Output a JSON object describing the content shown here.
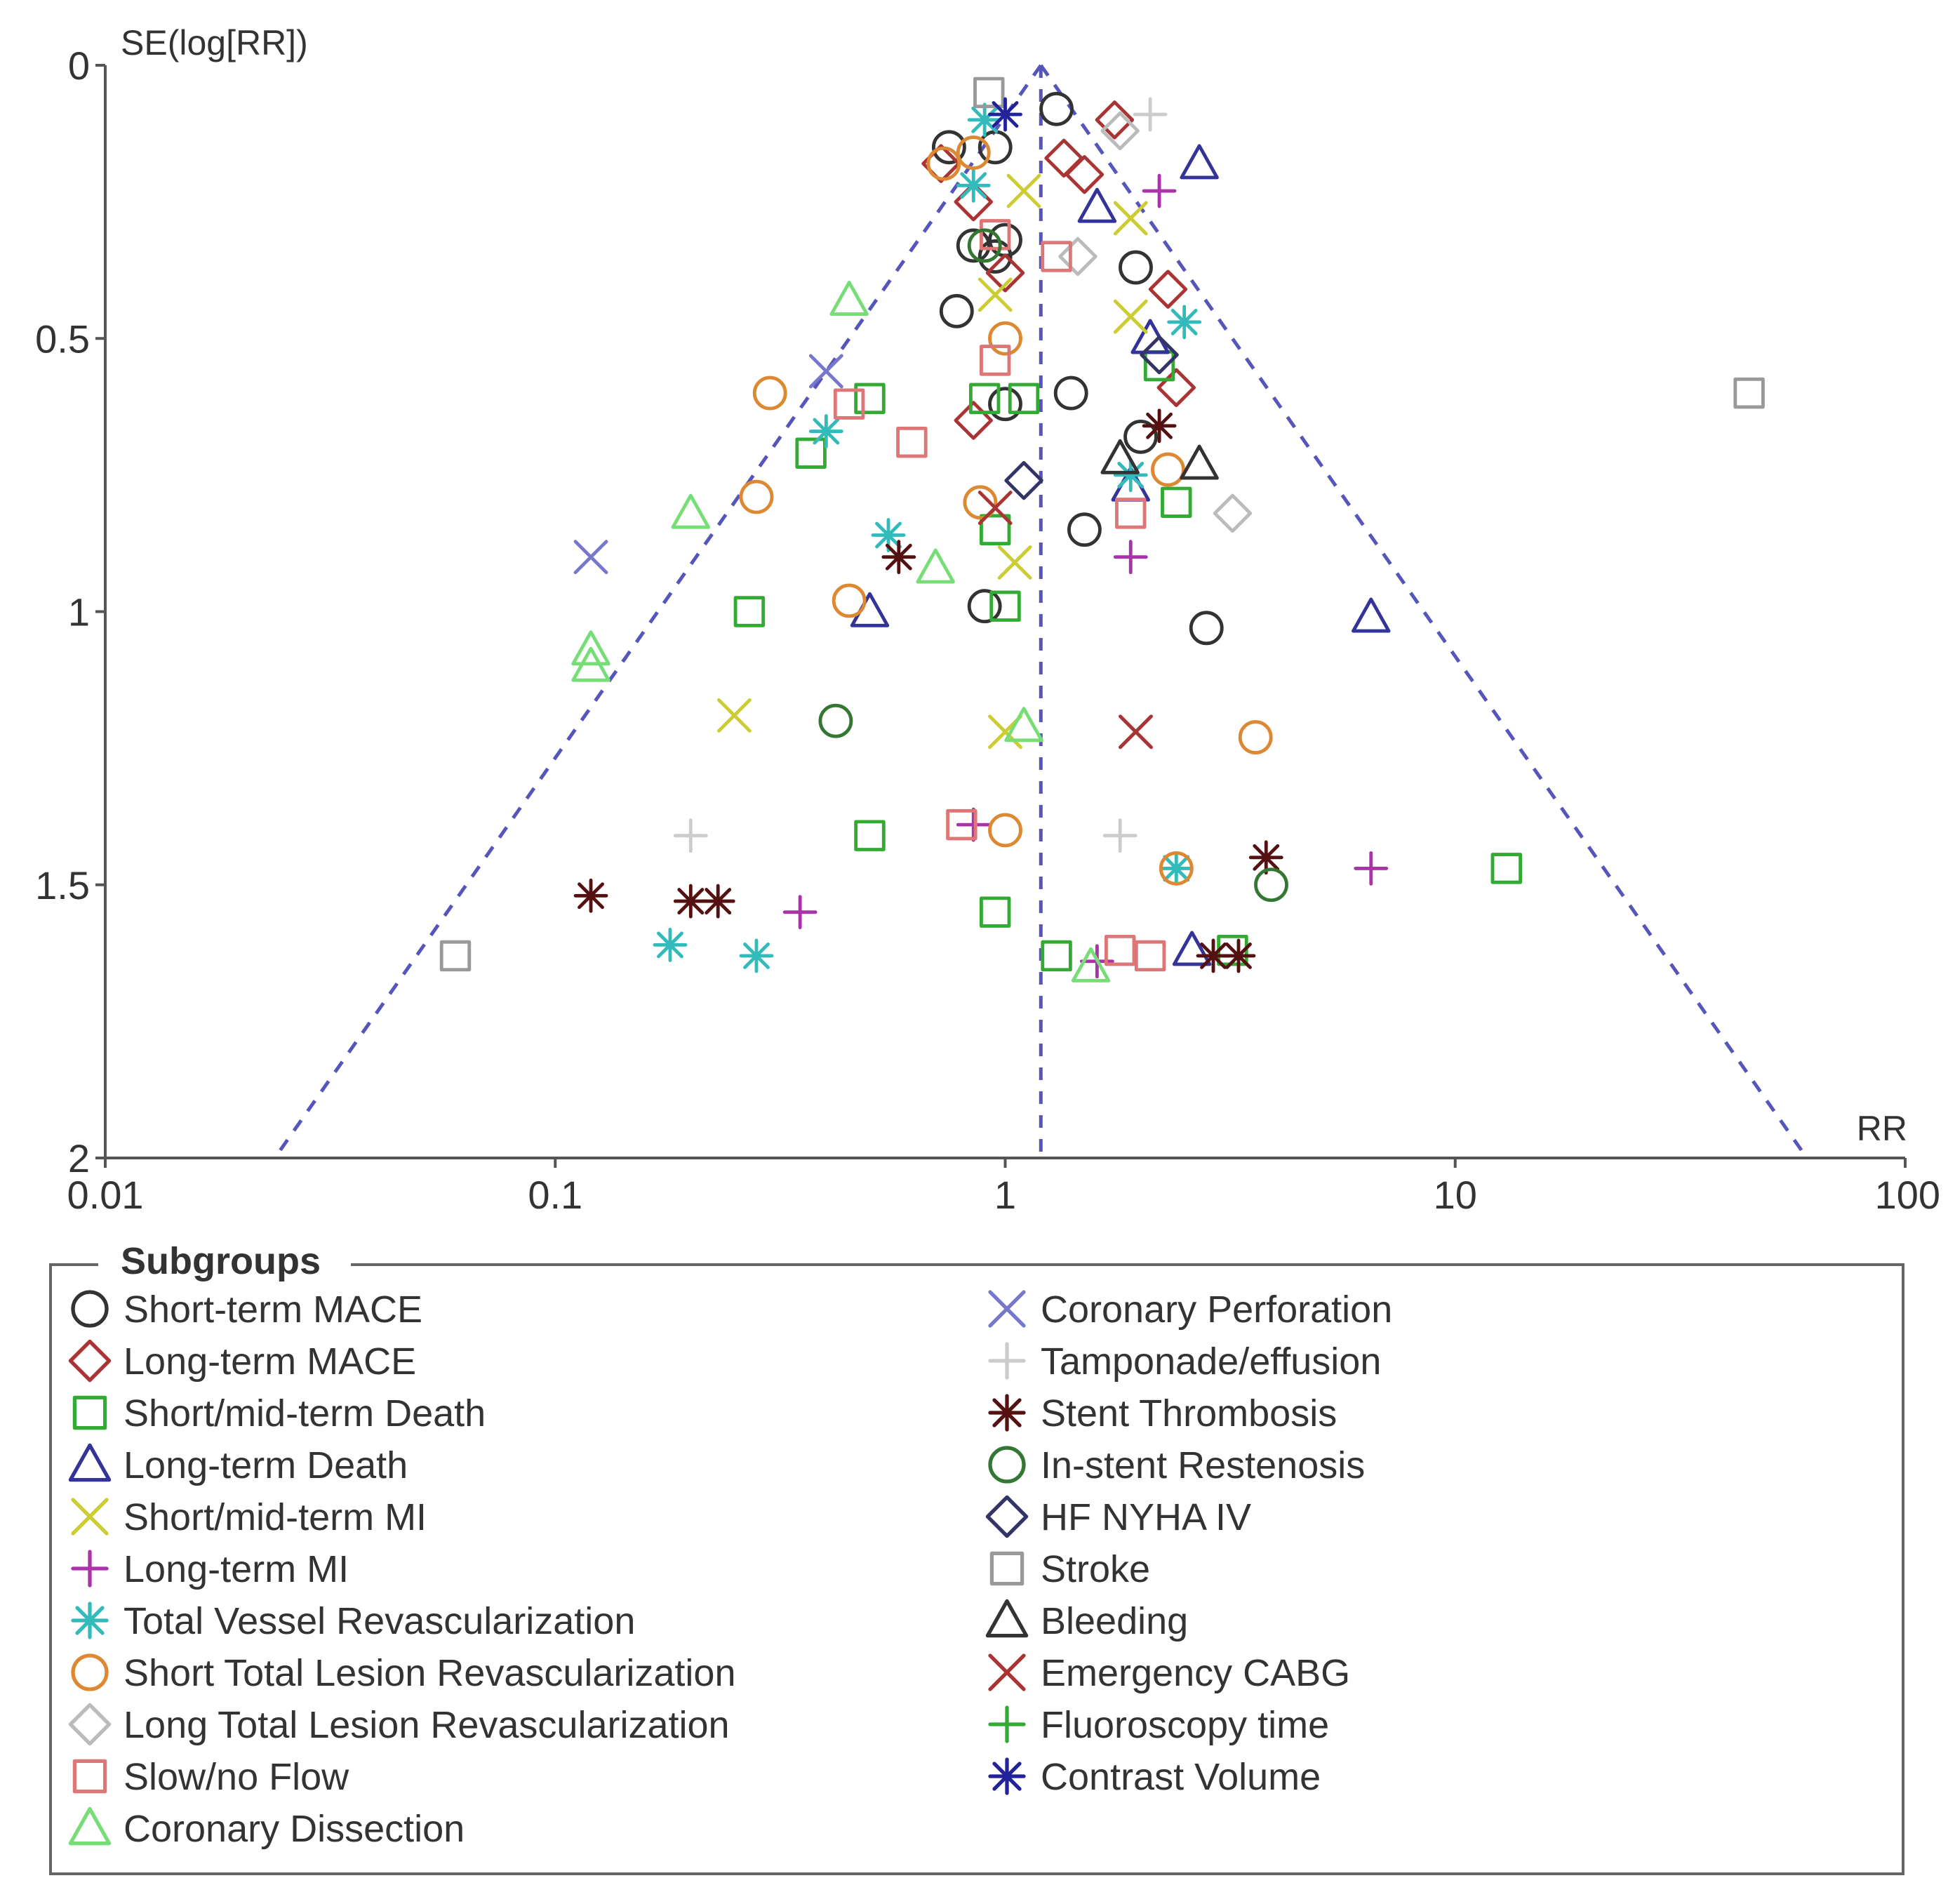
{
  "chart_data": {
    "type": "scatter",
    "title": "",
    "xlabel": "RR",
    "ylabel": "SE(log[RR])",
    "xscale": "log",
    "xlim": [
      0.01,
      100
    ],
    "ylim": [
      0,
      2
    ],
    "y_inverted": true,
    "x_ticks": [
      0.01,
      0.1,
      1,
      10,
      100
    ],
    "x_tick_labels": [
      "0.01",
      "0.1",
      "1",
      "10",
      "100"
    ],
    "y_ticks": [
      0,
      0.5,
      1,
      1.5,
      2
    ],
    "y_tick_labels": [
      "0",
      "0.5",
      "1",
      "1.5",
      "2"
    ],
    "pooled_rr": 1.2,
    "funnel_se_max": 2.0,
    "legend_title": "Subgroups",
    "legend_position": "bottom",
    "series": [
      {
        "name": "Short-term MACE",
        "marker": "circle",
        "color": "#333333",
        "points": [
          [
            0.75,
            0.15
          ],
          [
            0.95,
            0.15
          ],
          [
            1.3,
            0.08
          ],
          [
            0.85,
            0.33
          ],
          [
            0.95,
            0.35
          ],
          [
            1.0,
            0.32
          ],
          [
            1.95,
            0.37
          ],
          [
            0.78,
            0.45
          ],
          [
            1.0,
            0.62
          ],
          [
            1.4,
            0.6
          ],
          [
            2.0,
            0.68
          ],
          [
            1.5,
            0.85
          ],
          [
            0.9,
            0.99
          ],
          [
            2.8,
            1.03
          ]
        ]
      },
      {
        "name": "Long-term MACE",
        "marker": "diamond",
        "color": "#aa3333",
        "points": [
          [
            0.72,
            0.18
          ],
          [
            1.35,
            0.17
          ],
          [
            1.5,
            0.2
          ],
          [
            0.85,
            0.25
          ],
          [
            1.0,
            0.38
          ],
          [
            1.75,
            0.1
          ],
          [
            2.3,
            0.41
          ],
          [
            2.4,
            0.59
          ],
          [
            0.85,
            0.65
          ]
        ]
      },
      {
        "name": "Short/mid-term Death",
        "marker": "square",
        "color": "#33aa33",
        "points": [
          [
            0.5,
            0.61
          ],
          [
            0.9,
            0.61
          ],
          [
            1.1,
            0.61
          ],
          [
            0.37,
            0.71
          ],
          [
            0.27,
            1.0
          ],
          [
            0.95,
            0.85
          ],
          [
            1.0,
            0.99
          ],
          [
            2.4,
            0.8
          ],
          [
            2.2,
            0.55
          ],
          [
            0.5,
            1.41
          ],
          [
            0.95,
            1.55
          ],
          [
            1.3,
            1.63
          ],
          [
            3.2,
            1.62
          ],
          [
            13,
            1.47
          ]
        ]
      },
      {
        "name": "Long-term Death",
        "marker": "triangle",
        "color": "#333399",
        "points": [
          [
            2.7,
            0.18
          ],
          [
            1.6,
            0.26
          ],
          [
            2.1,
            0.5
          ],
          [
            1.9,
            0.77
          ],
          [
            0.5,
            1.0
          ],
          [
            6.5,
            1.01
          ],
          [
            2.6,
            1.62
          ]
        ]
      },
      {
        "name": "Short/mid-term MI",
        "marker": "x",
        "color": "#cccc33",
        "points": [
          [
            1.1,
            0.23
          ],
          [
            1.9,
            0.28
          ],
          [
            0.95,
            0.42
          ],
          [
            1.9,
            0.46
          ],
          [
            1.05,
            0.91
          ],
          [
            0.25,
            1.19
          ],
          [
            1.0,
            1.22
          ]
        ]
      },
      {
        "name": "Long-term MI",
        "marker": "plus",
        "color": "#aa33aa",
        "points": [
          [
            2.2,
            0.23
          ],
          [
            1.9,
            0.9
          ],
          [
            0.35,
            1.55
          ],
          [
            6.5,
            1.47
          ],
          [
            1.6,
            1.64
          ],
          [
            0.85,
            1.39
          ]
        ]
      },
      {
        "name": "Total Vessel Revascularization",
        "marker": "asterisk",
        "color": "#33bbbb",
        "points": [
          [
            0.9,
            0.1
          ],
          [
            0.85,
            0.22
          ],
          [
            2.5,
            0.47
          ],
          [
            0.4,
            0.67
          ],
          [
            0.55,
            0.86
          ],
          [
            0.18,
            1.61
          ],
          [
            0.28,
            1.63
          ],
          [
            2.4,
            1.47
          ],
          [
            1.9,
            0.75
          ]
        ]
      },
      {
        "name": "Short Total Lesion Revascularization",
        "marker": "circle",
        "color": "#dd8833",
        "points": [
          [
            0.73,
            0.18
          ],
          [
            0.85,
            0.16
          ],
          [
            1.0,
            0.5
          ],
          [
            0.3,
            0.6
          ],
          [
            0.28,
            0.79
          ],
          [
            0.88,
            0.8
          ],
          [
            0.45,
            0.98
          ],
          [
            2.3,
            0.74
          ],
          [
            3.6,
            1.23
          ],
          [
            1.0,
            1.4
          ],
          [
            2.4,
            1.47
          ]
        ]
      },
      {
        "name": "Long Total Lesion Revascularization",
        "marker": "diamond",
        "color": "#bbbbbb",
        "points": [
          [
            1.45,
            0.35
          ],
          [
            3.2,
            0.82
          ],
          [
            1.8,
            0.12
          ]
        ]
      },
      {
        "name": "Slow/no Flow",
        "marker": "square",
        "color": "#dd7777",
        "points": [
          [
            0.95,
            0.31
          ],
          [
            1.3,
            0.35
          ],
          [
            0.95,
            0.54
          ],
          [
            0.62,
            0.69
          ],
          [
            0.45,
            0.62
          ],
          [
            1.9,
            0.82
          ],
          [
            0.8,
            1.39
          ],
          [
            1.8,
            1.62
          ],
          [
            2.1,
            1.63
          ]
        ]
      },
      {
        "name": "Coronary Dissection",
        "marker": "triangle",
        "color": "#77dd77",
        "points": [
          [
            0.45,
            0.43
          ],
          [
            0.2,
            0.82
          ],
          [
            0.12,
            1.07
          ],
          [
            0.12,
            1.1
          ],
          [
            0.7,
            0.92
          ],
          [
            1.1,
            1.21
          ],
          [
            1.55,
            1.65
          ]
        ]
      },
      {
        "name": "Coronary Perforation",
        "marker": "x",
        "color": "#7777cc",
        "points": [
          [
            0.4,
            0.56
          ],
          [
            0.12,
            0.9
          ],
          [
            1.95,
            1.22
          ]
        ]
      },
      {
        "name": "Tamponade/effusion",
        "marker": "plus",
        "color": "#cccccc",
        "points": [
          [
            2.1,
            0.09
          ],
          [
            0.2,
            1.41
          ],
          [
            1.8,
            1.41
          ]
        ]
      },
      {
        "name": "Stent Thrombosis",
        "marker": "asterisk",
        "color": "#551111",
        "points": [
          [
            0.58,
            0.9
          ],
          [
            2.2,
            0.66
          ],
          [
            0.12,
            1.52
          ],
          [
            0.2,
            1.53
          ],
          [
            0.23,
            1.53
          ],
          [
            3.8,
            1.45
          ],
          [
            2.9,
            1.63
          ],
          [
            3.3,
            1.63
          ]
        ]
      },
      {
        "name": "In-stent Restenosis",
        "marker": "circle",
        "color": "#337733",
        "points": [
          [
            0.9,
            0.33
          ],
          [
            0.42,
            1.2
          ],
          [
            3.9,
            1.5
          ]
        ]
      },
      {
        "name": "HF NYHA IV",
        "marker": "diamond",
        "color": "#333366",
        "points": [
          [
            1.1,
            0.76
          ],
          [
            2.2,
            0.53
          ]
        ]
      },
      {
        "name": "Stroke",
        "marker": "square",
        "color": "#999999",
        "points": [
          [
            0.92,
            0.05
          ],
          [
            0.06,
            1.63
          ],
          [
            45,
            0.6
          ]
        ]
      },
      {
        "name": "Bleeding",
        "marker": "triangle",
        "color": "#333333",
        "points": [
          [
            1.8,
            0.72
          ],
          [
            2.7,
            0.73
          ]
        ]
      },
      {
        "name": "Emergency CABG",
        "marker": "x",
        "color": "#aa3333",
        "points": [
          [
            0.95,
            0.81
          ],
          [
            1.95,
            1.22
          ]
        ]
      },
      {
        "name": "Fluoroscopy time",
        "marker": "plus",
        "color": "#33aa33",
        "points": []
      },
      {
        "name": "Contrast Volume",
        "marker": "asterisk",
        "color": "#222299",
        "points": [
          [
            1.0,
            0.09
          ]
        ]
      }
    ]
  }
}
